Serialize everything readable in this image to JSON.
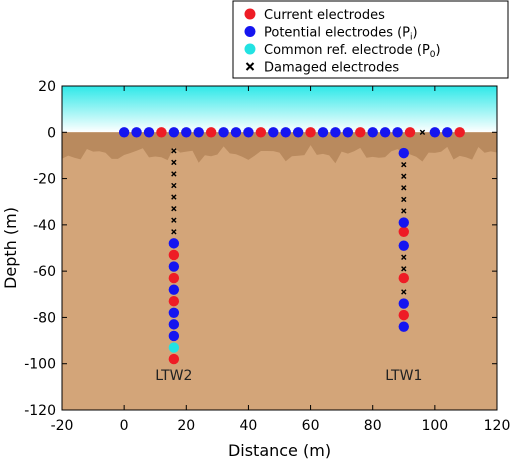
{
  "chart_data": {
    "type": "scatter",
    "xlabel": "Distance (m)",
    "ylabel": "Depth (m)",
    "xlim": [
      -20,
      120
    ],
    "ylim": [
      -120,
      20
    ],
    "x_ticks": [
      -20,
      0,
      20,
      40,
      60,
      80,
      100,
      120
    ],
    "y_ticks": [
      20,
      0,
      -20,
      -40,
      -60,
      -80,
      -100,
      -120
    ],
    "legend_position": "top-right",
    "legend": [
      {
        "key": "current",
        "label": "Current electrodes",
        "sub": "",
        "marker": "circle",
        "color": "#ee1c25"
      },
      {
        "key": "potential",
        "label": "Potential electrodes (P",
        "sub": "i",
        "marker": "circle",
        "color": "#1515f0"
      },
      {
        "key": "reference",
        "label": "Common ref. electrode (P",
        "sub": "0",
        "marker": "circle",
        "color": "#22e2e2"
      },
      {
        "key": "damaged",
        "label": "Damaged electrodes",
        "sub": "",
        "marker": "x",
        "color": "#000000"
      }
    ],
    "annotations": [
      {
        "text": "LTW2",
        "x": 16,
        "y": -107
      },
      {
        "text": "LTW1",
        "x": 90,
        "y": -107
      }
    ],
    "colors": {
      "air_top": "#2ee8e8",
      "air_bottom": "#ffffff",
      "topsoil": "#b98a5e",
      "subsoil": "#d3a579",
      "current": "#ee1c25",
      "potential": "#1515f0",
      "reference": "#22e2e2",
      "damaged": "#000000"
    },
    "series": [
      {
        "name": "Current electrodes",
        "marker": "circle",
        "points": [
          [
            12,
            0
          ],
          [
            28,
            0
          ],
          [
            44,
            0
          ],
          [
            60,
            0
          ],
          [
            76,
            0
          ],
          [
            92,
            0
          ],
          [
            108,
            0
          ],
          [
            16,
            -53
          ],
          [
            16,
            -63
          ],
          [
            16,
            -73
          ],
          [
            16,
            -98
          ],
          [
            90,
            -43
          ],
          [
            90,
            -63
          ],
          [
            90,
            -79
          ]
        ]
      },
      {
        "name": "Potential electrodes (Pi)",
        "marker": "circle",
        "points": [
          [
            0,
            0
          ],
          [
            4,
            0
          ],
          [
            8,
            0
          ],
          [
            16,
            0
          ],
          [
            20,
            0
          ],
          [
            24,
            0
          ],
          [
            32,
            0
          ],
          [
            36,
            0
          ],
          [
            40,
            0
          ],
          [
            48,
            0
          ],
          [
            52,
            0
          ],
          [
            56,
            0
          ],
          [
            64,
            0
          ],
          [
            68,
            0
          ],
          [
            72,
            0
          ],
          [
            80,
            0
          ],
          [
            84,
            0
          ],
          [
            88,
            0
          ],
          [
            100,
            0
          ],
          [
            104,
            0
          ],
          [
            16,
            -48
          ],
          [
            16,
            -58
          ],
          [
            16,
            -68
          ],
          [
            16,
            -78
          ],
          [
            16,
            -83
          ],
          [
            16,
            -88
          ],
          [
            90,
            -9
          ],
          [
            90,
            -39
          ],
          [
            90,
            -49
          ],
          [
            90,
            -74
          ],
          [
            90,
            -84
          ]
        ]
      },
      {
        "name": "Common ref. electrode (P0)",
        "marker": "circle",
        "points": [
          [
            16,
            -93
          ]
        ]
      },
      {
        "name": "Damaged electrodes",
        "marker": "x",
        "points": [
          [
            96,
            0
          ],
          [
            16,
            -8
          ],
          [
            16,
            -13
          ],
          [
            16,
            -18
          ],
          [
            16,
            -23
          ],
          [
            16,
            -28
          ],
          [
            16,
            -33
          ],
          [
            16,
            -38
          ],
          [
            16,
            -43
          ],
          [
            90,
            -14
          ],
          [
            90,
            -19
          ],
          [
            90,
            -24
          ],
          [
            90,
            -29
          ],
          [
            90,
            -34
          ],
          [
            90,
            -54
          ],
          [
            90,
            -59
          ],
          [
            90,
            -69
          ]
        ]
      }
    ]
  }
}
